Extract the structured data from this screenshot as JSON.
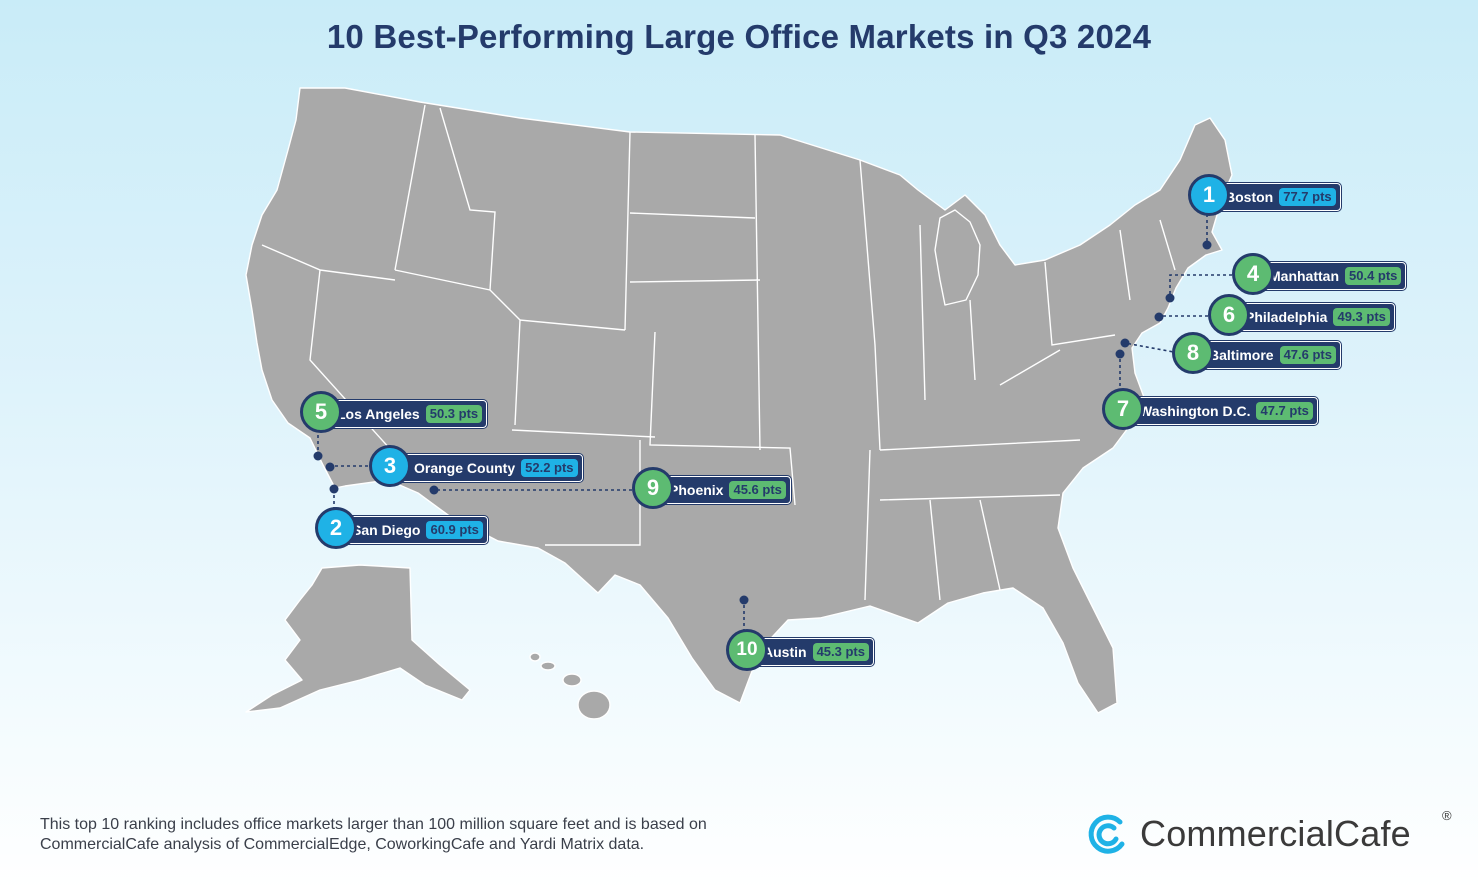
{
  "title": "10 Best-Performing Large Office Markets in Q3 2024",
  "markets": [
    {
      "rank": "1",
      "city": "Boston",
      "points": "77.7 pts",
      "color": "blue"
    },
    {
      "rank": "2",
      "city": "San Diego",
      "points": "60.9 pts",
      "color": "blue"
    },
    {
      "rank": "3",
      "city": "Orange County",
      "points": "52.2 pts",
      "color": "blue"
    },
    {
      "rank": "4",
      "city": "Manhattan",
      "points": "50.4 pts",
      "color": "green"
    },
    {
      "rank": "5",
      "city": "Los Angeles",
      "points": "50.3 pts",
      "color": "green"
    },
    {
      "rank": "6",
      "city": "Philadelphia",
      "points": "49.3 pts",
      "color": "green"
    },
    {
      "rank": "7",
      "city": "Washington D.C.",
      "points": "47.7 pts",
      "color": "green"
    },
    {
      "rank": "8",
      "city": "Baltimore",
      "points": "47.6 pts",
      "color": "green"
    },
    {
      "rank": "9",
      "city": "Phoenix",
      "points": "45.6 pts",
      "color": "green"
    },
    {
      "rank": "10",
      "city": "Austin",
      "points": "45.3 pts",
      "color": "green"
    }
  ],
  "colors": {
    "top3": "#1fb2e6",
    "others": "#5dbb72",
    "navy": "#243b6b",
    "land": "#a9a9a9"
  },
  "footnote": "This top 10 ranking includes office markets larger than 100 million square feet and is based on CommercialCafe analysis of CommercialEdge, CoworkingCafe and Yardi Matrix data.",
  "logo": {
    "name": "CommercialCafe",
    "registered": "®"
  }
}
